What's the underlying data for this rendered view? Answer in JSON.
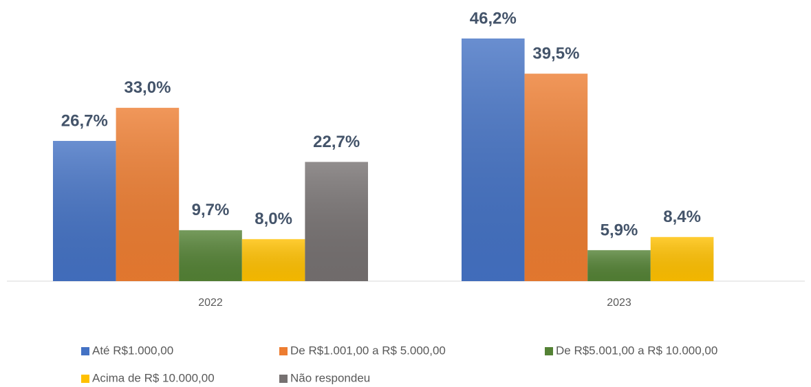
{
  "chart_data": {
    "type": "bar",
    "categories": [
      "2022",
      "2023"
    ],
    "series": [
      {
        "name": "Até R$1.000,00",
        "color": "#4472c4",
        "values": [
          26.7,
          46.2
        ],
        "value_labels": [
          "26,7%",
          "46,2%"
        ]
      },
      {
        "name": "De R$1.001,00 a R$ 5.000,00",
        "color": "#ed7d31",
        "values": [
          33.0,
          39.5
        ],
        "value_labels": [
          "33,0%",
          "39,5%"
        ]
      },
      {
        "name": "De R$5.001,00 a R$ 10.000,00",
        "color": "#548235",
        "values": [
          9.7,
          5.9
        ],
        "value_labels": [
          "9,7%",
          "5,9%"
        ]
      },
      {
        "name": "Acima de R$ 10.000,00",
        "color": "#ffc000",
        "values": [
          8.0,
          8.4
        ],
        "value_labels": [
          "8,0%",
          "8,4%"
        ]
      },
      {
        "name": "Não respondeu",
        "color": "#767171",
        "values": [
          22.7,
          null
        ],
        "value_labels": [
          "22,7%",
          null
        ]
      }
    ],
    "legend": "bottom"
  }
}
